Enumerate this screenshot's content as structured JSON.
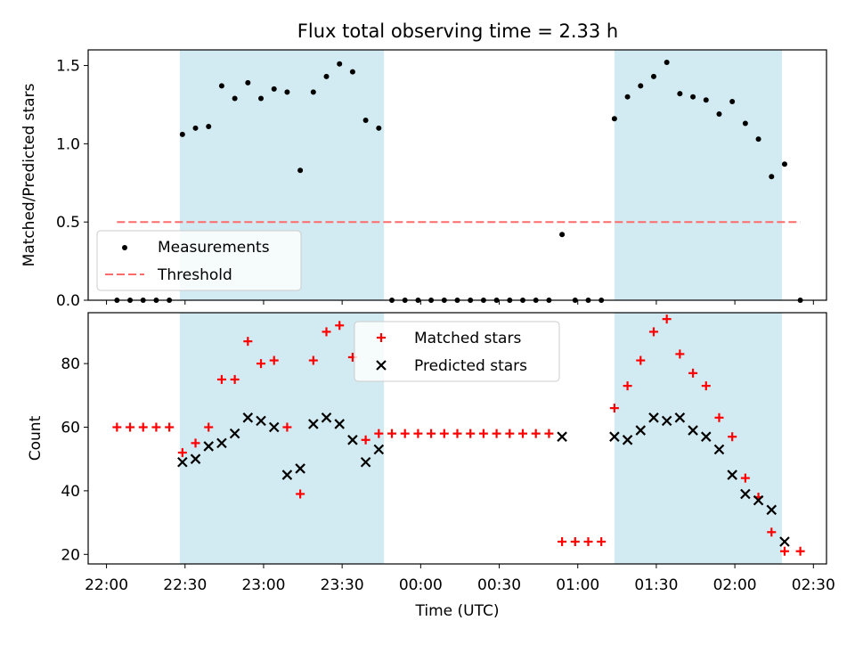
{
  "figure": {
    "title": "Flux total observing time = 2.33 h"
  },
  "colors": {
    "shade": "#add8e6",
    "measurement": "#000000",
    "threshold": "#ff6b6b",
    "matched": "#ff0000",
    "predicted": "#000000"
  },
  "chart_data": [
    {
      "type": "scatter",
      "panel": "top",
      "title": "Flux total observing time = 2.33 h",
      "xlabel": "",
      "ylabel": "Matched/Predicted stars",
      "xlim": [
        "21:53",
        "02:35"
      ],
      "ylim": [
        0,
        1.6
      ],
      "yticks": [
        0.0,
        0.5,
        1.0,
        1.5
      ],
      "ytick_labels": [
        "0.0",
        "0.5",
        "1.0",
        "1.5"
      ],
      "shaded_intervals": [
        [
          "22:28",
          "23:46"
        ],
        [
          "01:14",
          "02:18"
        ]
      ],
      "threshold": {
        "value": 0.5,
        "x_range": [
          "22:04",
          "02:25"
        ]
      },
      "legend": {
        "position": "lower-left",
        "entries": [
          "Measurements",
          "Threshold"
        ]
      },
      "series": [
        {
          "name": "Measurements",
          "x": [
            "22:04",
            "22:09",
            "22:14",
            "22:19",
            "22:24",
            "22:29",
            "22:34",
            "22:39",
            "22:44",
            "22:49",
            "22:54",
            "22:59",
            "23:04",
            "23:09",
            "23:14",
            "23:19",
            "23:24",
            "23:29",
            "23:34",
            "23:39",
            "23:44",
            "23:49",
            "23:54",
            "23:59",
            "00:04",
            "00:09",
            "00:14",
            "00:19",
            "00:24",
            "00:29",
            "00:34",
            "00:39",
            "00:44",
            "00:49",
            "00:54",
            "00:59",
            "01:04",
            "01:09",
            "01:14",
            "01:19",
            "01:24",
            "01:29",
            "01:34",
            "01:39",
            "01:44",
            "01:49",
            "01:54",
            "01:59",
            "02:04",
            "02:09",
            "02:14",
            "02:19",
            "02:25"
          ],
          "y": [
            0,
            0,
            0,
            0,
            0,
            1.06,
            1.1,
            1.11,
            1.37,
            1.29,
            1.39,
            1.29,
            1.35,
            1.33,
            0.83,
            1.33,
            1.43,
            1.51,
            1.46,
            1.15,
            1.1,
            0,
            0,
            0,
            0,
            0,
            0,
            0,
            0,
            0,
            0,
            0,
            0,
            0,
            0.42,
            0,
            0,
            0,
            1.16,
            1.3,
            1.37,
            1.43,
            1.52,
            1.32,
            1.3,
            1.28,
            1.19,
            1.27,
            1.13,
            1.03,
            0.79,
            0.87,
            0
          ]
        }
      ]
    },
    {
      "type": "scatter",
      "panel": "bottom",
      "xlabel": "Time (UTC)",
      "ylabel": "Count",
      "xlim": [
        "21:53",
        "02:35"
      ],
      "ylim": [
        17,
        96
      ],
      "yticks": [
        20,
        40,
        60,
        80
      ],
      "ytick_labels": [
        "20",
        "40",
        "60",
        "80"
      ],
      "xticks": [
        "22:00",
        "22:30",
        "23:00",
        "23:30",
        "00:00",
        "00:30",
        "01:00",
        "01:30",
        "02:00",
        "02:30"
      ],
      "shaded_intervals": [
        [
          "22:28",
          "23:46"
        ],
        [
          "01:14",
          "02:18"
        ]
      ],
      "legend": {
        "position": "upper-center",
        "entries": [
          "Matched stars",
          "Predicted stars"
        ]
      },
      "series": [
        {
          "name": "Matched stars",
          "x": [
            "22:04",
            "22:09",
            "22:14",
            "22:19",
            "22:24",
            "22:29",
            "22:34",
            "22:39",
            "22:44",
            "22:49",
            "22:54",
            "22:59",
            "23:04",
            "23:09",
            "23:14",
            "23:19",
            "23:24",
            "23:29",
            "23:34",
            "23:39",
            "23:44",
            "23:49",
            "23:54",
            "23:59",
            "00:04",
            "00:09",
            "00:14",
            "00:19",
            "00:24",
            "00:29",
            "00:34",
            "00:39",
            "00:44",
            "00:49",
            "00:54",
            "00:59",
            "01:04",
            "01:09",
            "01:14",
            "01:19",
            "01:24",
            "01:29",
            "01:34",
            "01:39",
            "01:44",
            "01:49",
            "01:54",
            "01:59",
            "02:04",
            "02:09",
            "02:14",
            "02:19",
            "02:25"
          ],
          "y": [
            60,
            60,
            60,
            60,
            60,
            52,
            55,
            60,
            75,
            75,
            87,
            80,
            81,
            60,
            39,
            81,
            90,
            92,
            82,
            56,
            58,
            58,
            58,
            58,
            58,
            58,
            58,
            58,
            58,
            58,
            58,
            58,
            58,
            58,
            24,
            24,
            24,
            24,
            66,
            73,
            81,
            90,
            94,
            83,
            77,
            73,
            63,
            57,
            44,
            38,
            27,
            21,
            21
          ]
        },
        {
          "name": "Predicted stars",
          "x": [
            "22:29",
            "22:34",
            "22:39",
            "22:44",
            "22:49",
            "22:54",
            "22:59",
            "23:04",
            "23:09",
            "23:14",
            "23:19",
            "23:24",
            "23:29",
            "23:34",
            "23:39",
            "23:44",
            "00:54",
            "01:14",
            "01:19",
            "01:24",
            "01:29",
            "01:34",
            "01:39",
            "01:44",
            "01:49",
            "01:54",
            "01:59",
            "02:04",
            "02:09",
            "02:14",
            "02:19"
          ],
          "y": [
            49,
            50,
            54,
            55,
            58,
            63,
            62,
            60,
            45,
            47,
            61,
            63,
            61,
            56,
            49,
            53,
            57,
            57,
            56,
            59,
            63,
            62,
            63,
            59,
            57,
            53,
            45,
            39,
            37,
            34,
            24
          ]
        }
      ]
    }
  ]
}
